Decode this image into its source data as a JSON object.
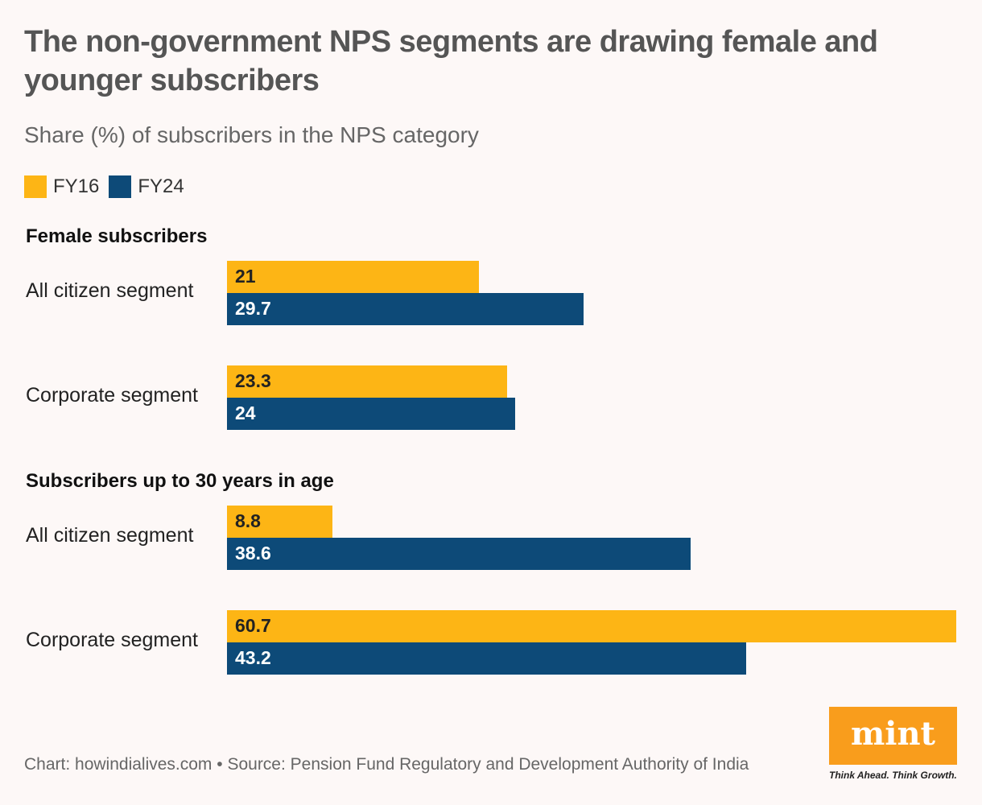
{
  "title": "The non-government NPS segments are drawing female and younger subscribers",
  "subtitle": "Share (%) of subscribers in the NPS category",
  "legend": [
    {
      "label": "FY16",
      "color": "#fdb515"
    },
    {
      "label": "FY24",
      "color": "#0d4a78"
    }
  ],
  "footer": "Chart: howindialives.com • Source: Pension Fund Regulatory and Development Authority of India",
  "logo": {
    "text": "mint",
    "tagline": "Think Ahead. Think Growth."
  },
  "chart_data": {
    "type": "bar",
    "orientation": "horizontal",
    "xlim": [
      0,
      60.7
    ],
    "series_names": [
      "FY16",
      "FY24"
    ],
    "groups": [
      {
        "title": "Female subscribers",
        "categories": [
          {
            "label": "All citizen segment",
            "values": [
              21,
              29.7
            ],
            "labels": [
              "21",
              "29.7"
            ]
          },
          {
            "label": "Corporate segment",
            "values": [
              23.3,
              24
            ],
            "labels": [
              "23.3",
              "24"
            ]
          }
        ]
      },
      {
        "title": "Subscribers up to 30 years in age",
        "categories": [
          {
            "label": "All citizen segment",
            "values": [
              8.8,
              38.6
            ],
            "labels": [
              "8.8",
              "38.6"
            ]
          },
          {
            "label": "Corporate segment",
            "values": [
              60.7,
              43.2
            ],
            "labels": [
              "60.7",
              "43.2"
            ]
          }
        ]
      }
    ]
  }
}
